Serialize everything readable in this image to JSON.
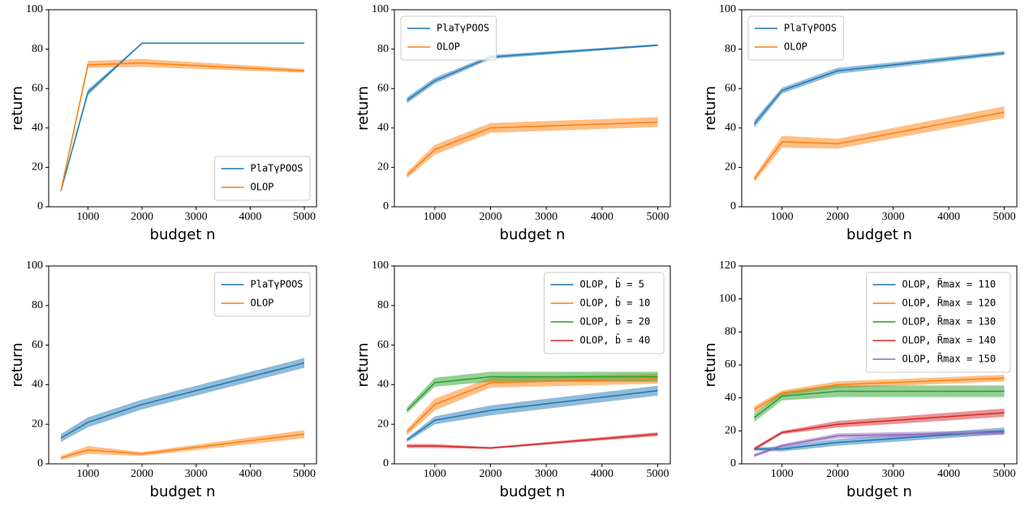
{
  "chart_data": [
    {
      "type": "line",
      "xlabel": "budget n",
      "ylabel": "return",
      "x": [
        500,
        1000,
        2000,
        5000
      ],
      "xlim": [
        275,
        5225
      ],
      "xticks": [
        1000,
        2000,
        3000,
        4000,
        5000
      ],
      "ylim": [
        0,
        100
      ],
      "yticks": [
        0,
        20,
        40,
        60,
        80,
        100
      ],
      "legend_loc": "lower right",
      "series": [
        {
          "name": "PlaTγPOOS",
          "color": "#1f77b4",
          "values": [
            8,
            58,
            83,
            83
          ],
          "lower": [
            7.5,
            56.5,
            82.8,
            82.8
          ],
          "upper": [
            8.5,
            59.5,
            83.2,
            83.2
          ]
        },
        {
          "name": "OLOP",
          "color": "#ff7f0e",
          "values": [
            8,
            72,
            73,
            69
          ],
          "lower": [
            7.5,
            70.5,
            71,
            68
          ],
          "upper": [
            8.5,
            74,
            75,
            70
          ]
        }
      ]
    },
    {
      "type": "line",
      "xlabel": "budget n",
      "ylabel": "return",
      "x": [
        500,
        1000,
        2000,
        5000
      ],
      "xlim": [
        275,
        5225
      ],
      "xticks": [
        1000,
        2000,
        3000,
        4000,
        5000
      ],
      "ylim": [
        0,
        100
      ],
      "yticks": [
        0,
        20,
        40,
        60,
        80,
        100
      ],
      "legend_loc": "upper left",
      "series": [
        {
          "name": "PlaTγPOOS",
          "color": "#1f77b4",
          "values": [
            54,
            64,
            76,
            82
          ],
          "lower": [
            52.5,
            62.5,
            75,
            81.5
          ],
          "upper": [
            55.5,
            65.5,
            77,
            82.5
          ]
        },
        {
          "name": "OLOP",
          "color": "#ff7f0e",
          "values": [
            16,
            29,
            40,
            43
          ],
          "lower": [
            14.5,
            26.5,
            37.5,
            40.5
          ],
          "upper": [
            17.5,
            31.5,
            42.5,
            45.5
          ]
        }
      ]
    },
    {
      "type": "line",
      "xlabel": "budget n",
      "ylabel": "return",
      "x": [
        500,
        1000,
        2000,
        5000
      ],
      "xlim": [
        275,
        5225
      ],
      "xticks": [
        1000,
        2000,
        3000,
        4000,
        5000
      ],
      "ylim": [
        0,
        100
      ],
      "yticks": [
        0,
        20,
        40,
        60,
        80,
        100
      ],
      "legend_loc": "upper left",
      "series": [
        {
          "name": "PlaTγPOOS",
          "color": "#1f77b4",
          "values": [
            42,
            59,
            69,
            78
          ],
          "lower": [
            40,
            57.5,
            67.5,
            77
          ],
          "upper": [
            44,
            60.5,
            70.5,
            79
          ]
        },
        {
          "name": "OLOP",
          "color": "#ff7f0e",
          "values": [
            14,
            33,
            32,
            48
          ],
          "lower": [
            12.5,
            30,
            29.5,
            45
          ],
          "upper": [
            15.5,
            36,
            34.5,
            51
          ]
        }
      ]
    },
    {
      "type": "line",
      "xlabel": "budget n",
      "ylabel": "return",
      "x": [
        500,
        1000,
        2000,
        5000
      ],
      "xlim": [
        275,
        5225
      ],
      "xticks": [
        1000,
        2000,
        3000,
        4000,
        5000
      ],
      "ylim": [
        0,
        100
      ],
      "yticks": [
        0,
        20,
        40,
        60,
        80,
        100
      ],
      "legend_loc": "upper right",
      "series": [
        {
          "name": "PlaTγPOOS",
          "color": "#1f77b4",
          "values": [
            13,
            21,
            30,
            51
          ],
          "lower": [
            11,
            18.5,
            27.5,
            48.5
          ],
          "upper": [
            15,
            23.5,
            32.5,
            53.5
          ]
        },
        {
          "name": "OLOP",
          "color": "#ff7f0e",
          "values": [
            3,
            7,
            5,
            15
          ],
          "lower": [
            2,
            5,
            4,
            13
          ],
          "upper": [
            4,
            9,
            6,
            17
          ]
        }
      ]
    },
    {
      "type": "line",
      "xlabel": "budget n",
      "ylabel": "return",
      "x": [
        500,
        1000,
        2000,
        5000
      ],
      "xlim": [
        275,
        5225
      ],
      "xticks": [
        1000,
        2000,
        3000,
        4000,
        5000
      ],
      "ylim": [
        0,
        100
      ],
      "yticks": [
        0,
        20,
        40,
        60,
        80,
        100
      ],
      "legend_loc": "upper right",
      "series": [
        {
          "name": "OLOP, b̄ = 5",
          "color": "#1f77b4",
          "values": [
            12,
            22,
            27,
            37
          ],
          "lower": [
            11,
            20,
            24.5,
            34.5
          ],
          "upper": [
            13,
            24,
            29.5,
            39.5
          ]
        },
        {
          "name": "OLOP, b̄ = 10",
          "color": "#ff7f0e",
          "values": [
            16,
            30,
            41,
            43
          ],
          "lower": [
            14.5,
            27,
            38.5,
            40.5
          ],
          "upper": [
            17.5,
            33,
            43.5,
            45.5
          ]
        },
        {
          "name": "OLOP, b̄ = 20",
          "color": "#2ca02c",
          "values": [
            27,
            41,
            44,
            44
          ],
          "lower": [
            25.5,
            39,
            41.5,
            41.5
          ],
          "upper": [
            28.5,
            43.5,
            46.5,
            46.5
          ]
        },
        {
          "name": "OLOP, b̄ = 40",
          "color": "#d62728",
          "values": [
            9,
            9,
            8,
            15
          ],
          "lower": [
            8,
            8,
            7.5,
            14
          ],
          "upper": [
            10,
            10,
            8.5,
            16
          ]
        }
      ]
    },
    {
      "type": "line",
      "xlabel": "budget n",
      "ylabel": "return",
      "x": [
        500,
        1000,
        2000,
        5000
      ],
      "xlim": [
        275,
        5225
      ],
      "xticks": [
        1000,
        2000,
        3000,
        4000,
        5000
      ],
      "ylim": [
        0,
        120
      ],
      "yticks": [
        0,
        20,
        40,
        60,
        80,
        100,
        120
      ],
      "legend_loc": "upper right",
      "series": [
        {
          "name": "OLOP, R̄max = 110",
          "color": "#1f77b4",
          "values": [
            9,
            9,
            13,
            20
          ],
          "lower": [
            8,
            7.5,
            11,
            18
          ],
          "upper": [
            10,
            10.5,
            15,
            22
          ]
        },
        {
          "name": "OLOP, R̄max = 120",
          "color": "#ff7f0e",
          "values": [
            33,
            43,
            48,
            52
          ],
          "lower": [
            31,
            41.5,
            46,
            50
          ],
          "upper": [
            35,
            44.5,
            50,
            54
          ]
        },
        {
          "name": "OLOP, R̄max = 130",
          "color": "#2ca02c",
          "values": [
            28,
            41,
            44,
            44
          ],
          "lower": [
            25.5,
            38.5,
            40.5,
            40.5
          ],
          "upper": [
            30.5,
            43.5,
            47.5,
            47.5
          ]
        },
        {
          "name": "OLOP, R̄max = 140",
          "color": "#d62728",
          "values": [
            9,
            19,
            24,
            31
          ],
          "lower": [
            8,
            18,
            22,
            28.5
          ],
          "upper": [
            10,
            20,
            26,
            33.5
          ]
        },
        {
          "name": "OLOP, R̄max = 150",
          "color": "#9467bd",
          "values": [
            5,
            11,
            17,
            19
          ],
          "lower": [
            4,
            10,
            15.5,
            17.5
          ],
          "upper": [
            6,
            12,
            18.5,
            20.5
          ]
        }
      ]
    }
  ]
}
